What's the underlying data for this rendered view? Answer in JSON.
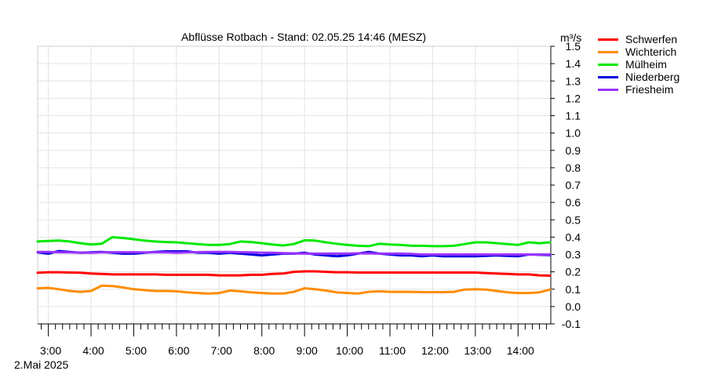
{
  "chart_data": {
    "type": "line",
    "title": "Abflüsse Rotbach - Stand: 02.05.25 14:46 (MESZ)",
    "ylabel": "m³/s",
    "ylim": [
      -0.1,
      1.5
    ],
    "y_ticks": [
      1.5,
      1.4,
      1.3,
      1.2,
      1.1,
      1.0,
      0.9,
      0.8,
      0.7,
      0.6,
      0.5,
      0.4,
      0.3,
      0.2,
      0.1,
      0.0,
      -0.1
    ],
    "y_tick_labels": [
      "1.5",
      "1.4",
      "1.3",
      "1.2",
      "1.1",
      "1.0",
      "0.9",
      "0.8",
      "0.7",
      "0.6",
      "0.5",
      "0.4",
      "0.3",
      "0.2",
      "0.1",
      "0.0",
      "-0.1"
    ],
    "xlim": [
      "02.05.2025 02:45",
      "02.05.2025 14:46"
    ],
    "x_ticks": [
      "3:00",
      "4:00",
      "5:00",
      "6:00",
      "7:00",
      "8:00",
      "9:00",
      "10:00",
      "11:00",
      "12:00",
      "13:00",
      "14:00"
    ],
    "date_label": "2.Mai 2025",
    "grid": true,
    "legend_position": "top-right",
    "x": [
      "02:45",
      "03:00",
      "03:15",
      "03:30",
      "03:45",
      "04:00",
      "04:15",
      "04:30",
      "04:45",
      "05:00",
      "05:15",
      "05:30",
      "05:45",
      "06:00",
      "06:15",
      "06:30",
      "06:45",
      "07:00",
      "07:15",
      "07:30",
      "07:45",
      "08:00",
      "08:15",
      "08:30",
      "08:45",
      "09:00",
      "09:15",
      "09:30",
      "09:45",
      "10:00",
      "10:15",
      "10:30",
      "10:45",
      "11:00",
      "11:15",
      "11:30",
      "11:45",
      "12:00",
      "12:15",
      "12:30",
      "12:45",
      "13:00",
      "13:15",
      "13:30",
      "13:45",
      "14:00",
      "14:15",
      "14:30",
      "14:45"
    ],
    "series": [
      {
        "name": "Schwerfen",
        "color": "#ff0000",
        "values": [
          0.195,
          0.198,
          0.198,
          0.196,
          0.195,
          0.19,
          0.188,
          0.185,
          0.185,
          0.185,
          0.185,
          0.185,
          0.183,
          0.183,
          0.183,
          0.183,
          0.183,
          0.18,
          0.18,
          0.18,
          0.183,
          0.183,
          0.188,
          0.19,
          0.2,
          0.203,
          0.203,
          0.2,
          0.198,
          0.198,
          0.196,
          0.196,
          0.196,
          0.196,
          0.196,
          0.196,
          0.196,
          0.196,
          0.196,
          0.196,
          0.196,
          0.196,
          0.193,
          0.19,
          0.188,
          0.185,
          0.185,
          0.18,
          0.178
        ]
      },
      {
        "name": "Wichterich",
        "color": "#ff8c00",
        "values": [
          0.105,
          0.108,
          0.1,
          0.09,
          0.085,
          0.09,
          0.12,
          0.118,
          0.11,
          0.1,
          0.095,
          0.09,
          0.09,
          0.088,
          0.082,
          0.078,
          0.075,
          0.078,
          0.092,
          0.088,
          0.082,
          0.078,
          0.075,
          0.075,
          0.085,
          0.105,
          0.1,
          0.092,
          0.082,
          0.078,
          0.075,
          0.085,
          0.088,
          0.085,
          0.085,
          0.085,
          0.083,
          0.083,
          0.083,
          0.085,
          0.098,
          0.1,
          0.098,
          0.09,
          0.082,
          0.078,
          0.078,
          0.082,
          0.098
        ]
      },
      {
        "name": "Mülheim",
        "color": "#00e800",
        "values": [
          0.375,
          0.378,
          0.38,
          0.375,
          0.365,
          0.358,
          0.362,
          0.4,
          0.395,
          0.388,
          0.38,
          0.375,
          0.372,
          0.37,
          0.365,
          0.36,
          0.355,
          0.355,
          0.36,
          0.375,
          0.372,
          0.365,
          0.358,
          0.352,
          0.36,
          0.382,
          0.38,
          0.37,
          0.362,
          0.355,
          0.35,
          0.348,
          0.362,
          0.358,
          0.355,
          0.35,
          0.35,
          0.348,
          0.348,
          0.35,
          0.36,
          0.37,
          0.37,
          0.365,
          0.36,
          0.355,
          0.37,
          0.365,
          0.37
        ]
      },
      {
        "name": "Niederberg",
        "color": "#0000dd",
        "values": [
          0.312,
          0.305,
          0.32,
          0.315,
          0.31,
          0.312,
          0.315,
          0.31,
          0.305,
          0.305,
          0.31,
          0.315,
          0.318,
          0.318,
          0.318,
          0.31,
          0.31,
          0.305,
          0.31,
          0.305,
          0.3,
          0.295,
          0.3,
          0.305,
          0.305,
          0.31,
          0.3,
          0.295,
          0.29,
          0.295,
          0.305,
          0.315,
          0.305,
          0.3,
          0.295,
          0.295,
          0.29,
          0.295,
          0.29,
          0.29,
          0.29,
          0.29,
          0.292,
          0.295,
          0.292,
          0.29,
          0.3,
          0.298,
          0.297
        ]
      },
      {
        "name": "Friesheim",
        "color": "#9933ff",
        "values": [
          0.315,
          0.315,
          0.312,
          0.312,
          0.31,
          0.31,
          0.312,
          0.313,
          0.313,
          0.313,
          0.312,
          0.312,
          0.312,
          0.31,
          0.312,
          0.313,
          0.315,
          0.315,
          0.315,
          0.313,
          0.312,
          0.31,
          0.31,
          0.308,
          0.307,
          0.305,
          0.305,
          0.305,
          0.305,
          0.305,
          0.307,
          0.307,
          0.305,
          0.305,
          0.305,
          0.303,
          0.3,
          0.3,
          0.3,
          0.3,
          0.3,
          0.3,
          0.3,
          0.3,
          0.3,
          0.3,
          0.3,
          0.3,
          0.3
        ]
      }
    ]
  }
}
